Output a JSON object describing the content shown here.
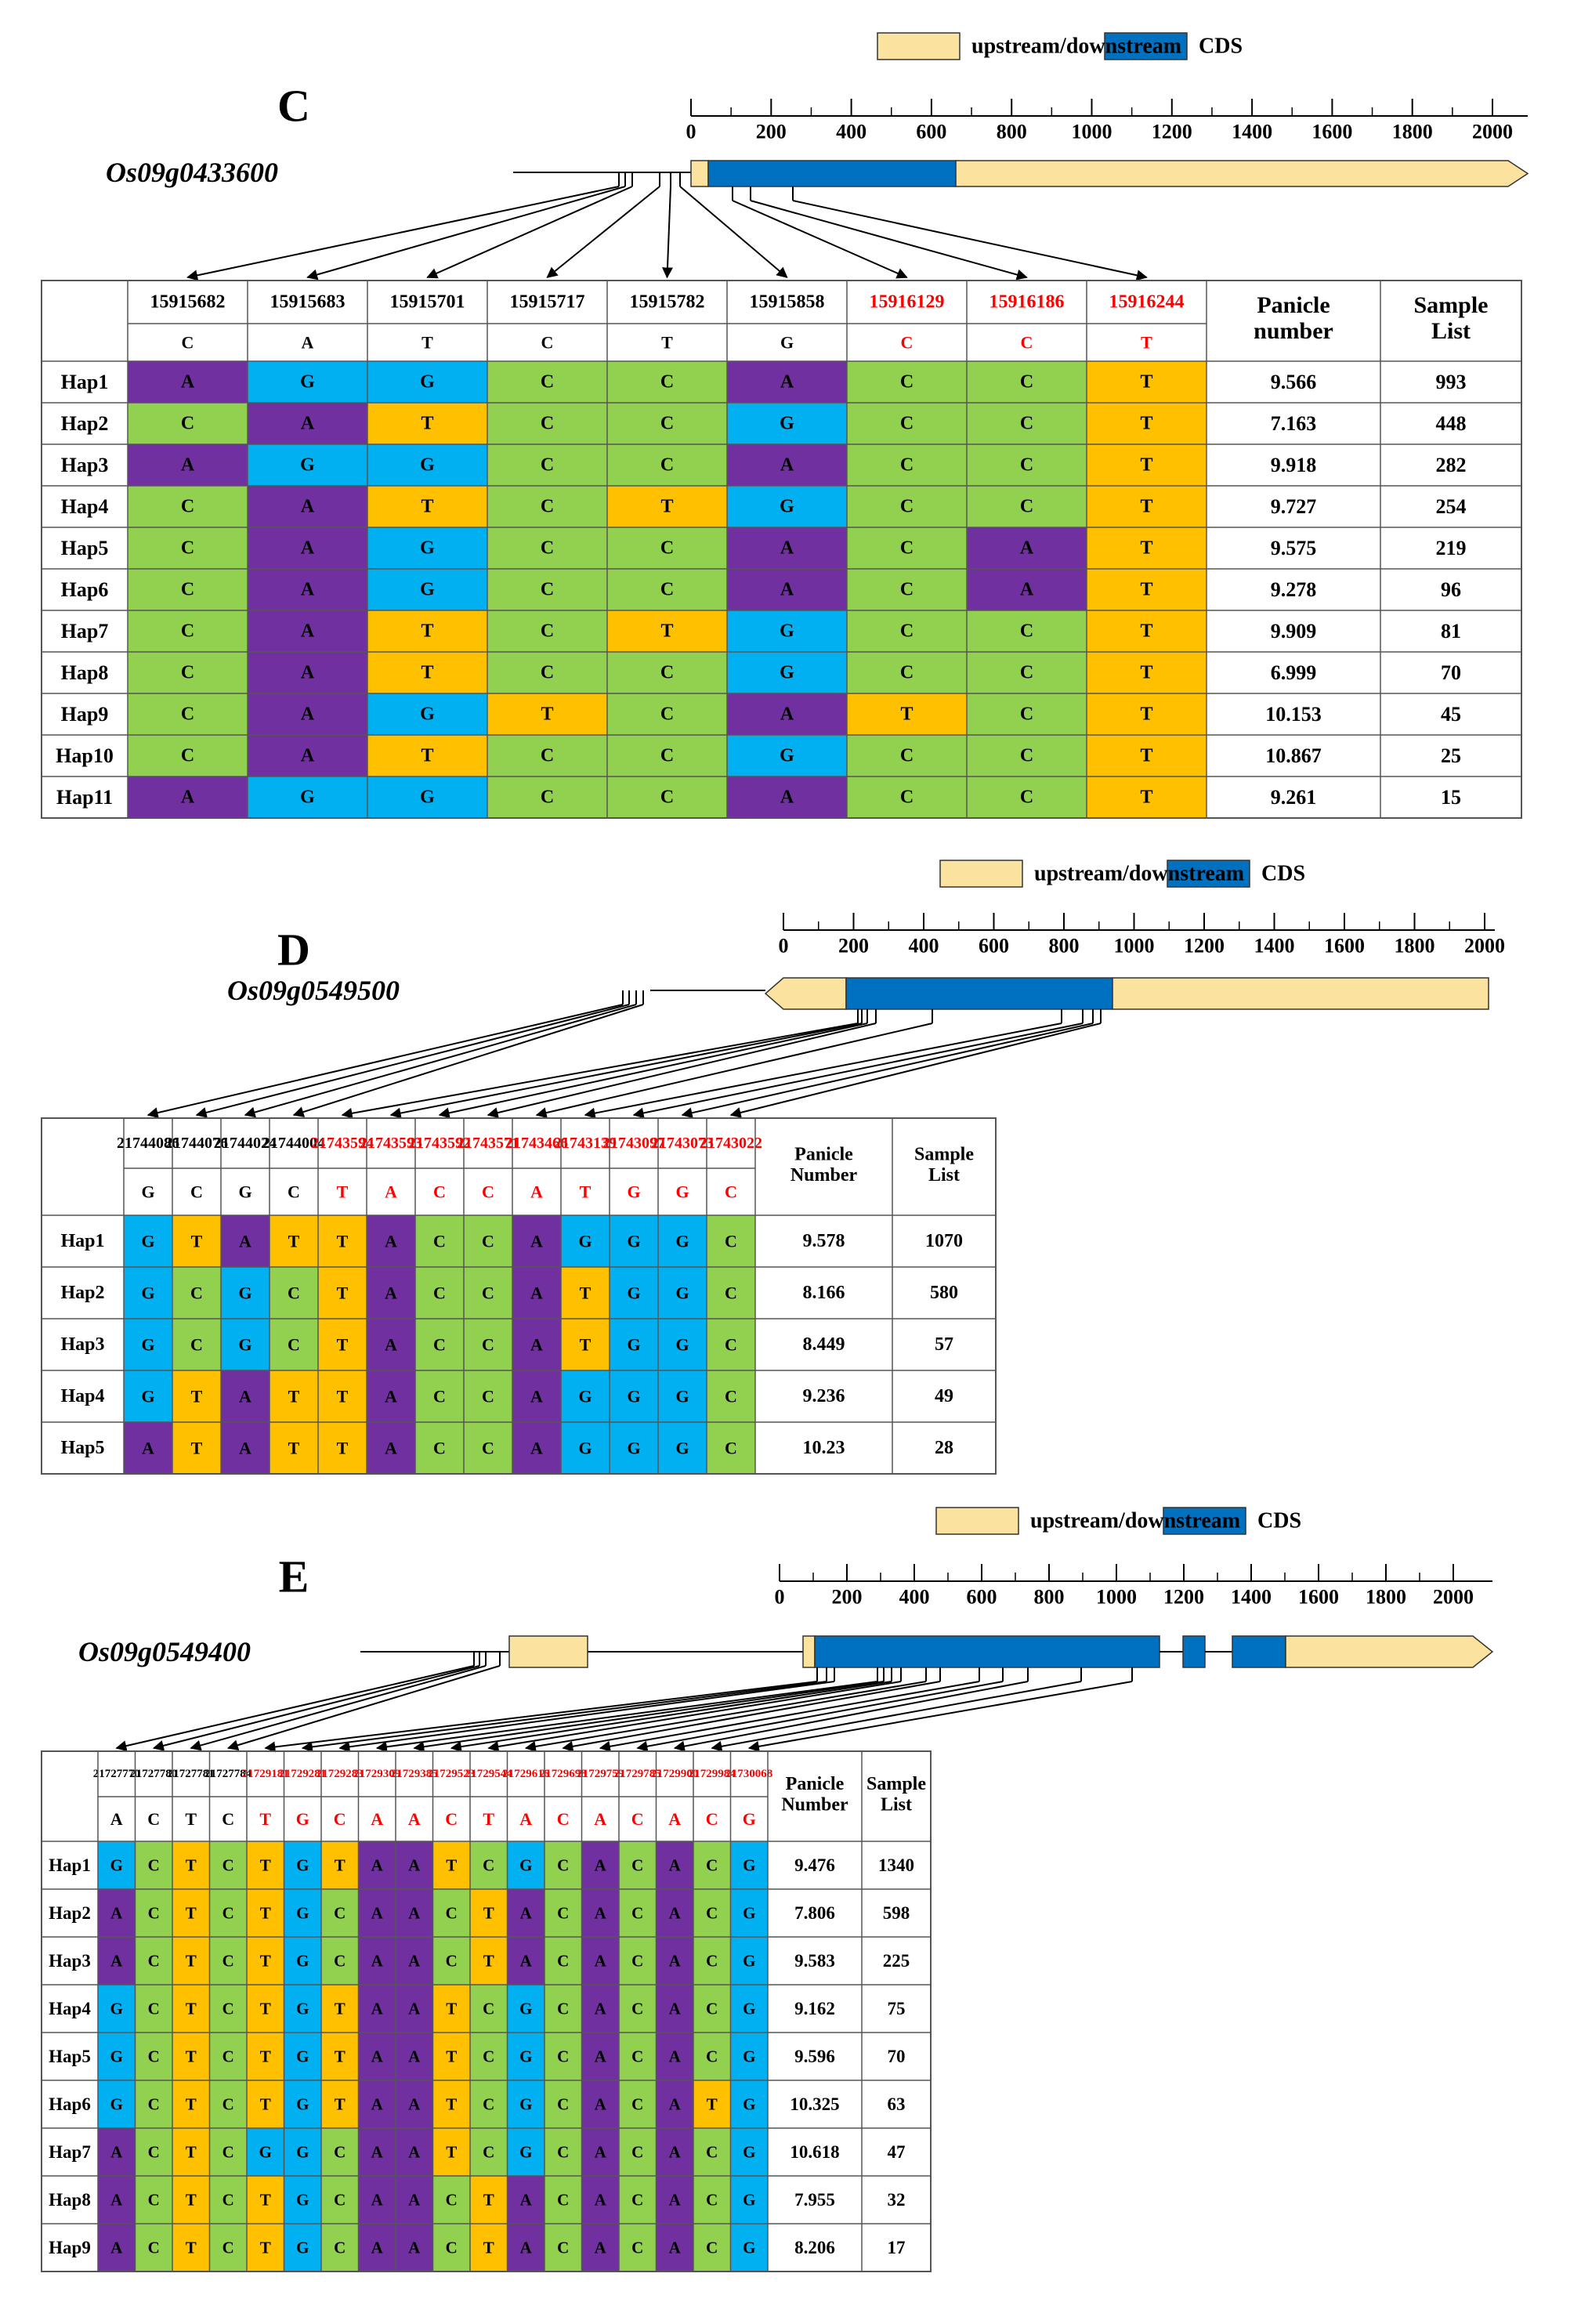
{
  "colors": {
    "A": "#7030a0",
    "C": "#92d050",
    "G": "#00b0f0",
    "T": "#ffc000",
    "utr": "#fbe39f",
    "cds": "#0070c0",
    "red": "#ff0000",
    "grid": "#555555"
  },
  "legend": {
    "utr_label": "upstream/downstream",
    "cds_label": "CDS"
  },
  "scale_ticks": [
    "0",
    "200",
    "400",
    "600",
    "800",
    "1000",
    "1200",
    "1400",
    "1600",
    "1800",
    "2000"
  ],
  "panels": [
    {
      "letter": "C",
      "gene": "Os09g0433600",
      "col_header_1": "Panicle number",
      "col_header_2": "Sample List",
      "positions": [
        "15915682",
        "15915683",
        "15915701",
        "15915717",
        "15915782",
        "15915858",
        "15916129",
        "15916186",
        "15916244"
      ],
      "ref": [
        "C",
        "A",
        "T",
        "C",
        "T",
        "G",
        "C",
        "C",
        "T"
      ],
      "red": [
        false,
        false,
        false,
        false,
        false,
        false,
        true,
        true,
        true
      ],
      "haps": [
        {
          "name": "Hap1",
          "alleles": [
            "A",
            "G",
            "G",
            "C",
            "C",
            "A",
            "C",
            "C",
            "T"
          ],
          "panicle": "9.566",
          "samples": "993"
        },
        {
          "name": "Hap2",
          "alleles": [
            "C",
            "A",
            "T",
            "C",
            "C",
            "G",
            "C",
            "C",
            "T"
          ],
          "panicle": "7.163",
          "samples": "448"
        },
        {
          "name": "Hap3",
          "alleles": [
            "A",
            "G",
            "G",
            "C",
            "C",
            "A",
            "C",
            "C",
            "T"
          ],
          "panicle": "9.918",
          "samples": "282"
        },
        {
          "name": "Hap4",
          "alleles": [
            "C",
            "A",
            "T",
            "C",
            "T",
            "G",
            "C",
            "C",
            "T"
          ],
          "panicle": "9.727",
          "samples": "254"
        },
        {
          "name": "Hap5",
          "alleles": [
            "C",
            "A",
            "G",
            "C",
            "C",
            "A",
            "C",
            "A",
            "T"
          ],
          "panicle": "9.575",
          "samples": "219"
        },
        {
          "name": "Hap6",
          "alleles": [
            "C",
            "A",
            "G",
            "C",
            "C",
            "A",
            "C",
            "A",
            "T"
          ],
          "panicle": "9.278",
          "samples": "96"
        },
        {
          "name": "Hap7",
          "alleles": [
            "C",
            "A",
            "T",
            "C",
            "T",
            "G",
            "C",
            "C",
            "T"
          ],
          "panicle": "9.909",
          "samples": "81"
        },
        {
          "name": "Hap8",
          "alleles": [
            "C",
            "A",
            "T",
            "C",
            "C",
            "G",
            "C",
            "C",
            "T"
          ],
          "panicle": "6.999",
          "samples": "70"
        },
        {
          "name": "Hap9",
          "alleles": [
            "C",
            "A",
            "G",
            "T",
            "C",
            "A",
            "T",
            "C",
            "T"
          ],
          "panicle": "10.153",
          "samples": "45"
        },
        {
          "name": "Hap10",
          "alleles": [
            "C",
            "A",
            "T",
            "C",
            "C",
            "G",
            "C",
            "C",
            "T"
          ],
          "panicle": "10.867",
          "samples": "25"
        },
        {
          "name": "Hap11",
          "alleles": [
            "A",
            "G",
            "G",
            "C",
            "C",
            "A",
            "C",
            "C",
            "T"
          ],
          "panicle": "9.261",
          "samples": "15"
        }
      ]
    },
    {
      "letter": "D",
      "gene": "Os09g0549500",
      "col_header_1": "Panicle Number",
      "col_header_2": "Sample List",
      "positions": [
        "21744086",
        "21744076",
        "21744024",
        "21744004",
        "21743594",
        "21743593",
        "21743592",
        "21743571",
        "21743466",
        "21743139",
        "21743097",
        "21743073",
        "21743022"
      ],
      "ref": [
        "G",
        "C",
        "G",
        "C",
        "T",
        "A",
        "C",
        "C",
        "A",
        "T",
        "G",
        "G",
        "C"
      ],
      "red": [
        false,
        false,
        false,
        false,
        true,
        true,
        true,
        true,
        true,
        true,
        true,
        true,
        true
      ],
      "haps": [
        {
          "name": "Hap1",
          "alleles": [
            "G",
            "T",
            "A",
            "T",
            "T",
            "A",
            "C",
            "C",
            "A",
            "G",
            "G",
            "G",
            "C"
          ],
          "panicle": "9.578",
          "samples": "1070"
        },
        {
          "name": "Hap2",
          "alleles": [
            "G",
            "C",
            "G",
            "C",
            "T",
            "A",
            "C",
            "C",
            "A",
            "T",
            "G",
            "G",
            "C"
          ],
          "panicle": "8.166",
          "samples": "580"
        },
        {
          "name": "Hap3",
          "alleles": [
            "G",
            "C",
            "G",
            "C",
            "T",
            "A",
            "C",
            "C",
            "A",
            "T",
            "G",
            "G",
            "C"
          ],
          "panicle": "8.449",
          "samples": "57"
        },
        {
          "name": "Hap4",
          "alleles": [
            "G",
            "T",
            "A",
            "T",
            "T",
            "A",
            "C",
            "C",
            "A",
            "G",
            "G",
            "G",
            "C"
          ],
          "panicle": "9.236",
          "samples": "49"
        },
        {
          "name": "Hap5",
          "alleles": [
            "A",
            "T",
            "A",
            "T",
            "T",
            "A",
            "C",
            "C",
            "A",
            "G",
            "G",
            "G",
            "C"
          ],
          "panicle": "10.23",
          "samples": "28"
        }
      ]
    },
    {
      "letter": "E",
      "gene": "Os09g0549400",
      "col_header_1": "Panicle Number",
      "col_header_2": "Sample List",
      "positions": [
        "21727770",
        "21727780",
        "21727781",
        "21727784",
        "21729181",
        "21729281",
        "21729283",
        "21729309",
        "21729385",
        "21729523",
        "21729544",
        "21729616",
        "21729698",
        "21729759",
        "21729785",
        "21729900",
        "21729984",
        "21730068"
      ],
      "ref": [
        "A",
        "C",
        "T",
        "C",
        "T",
        "G",
        "C",
        "A",
        "A",
        "C",
        "T",
        "A",
        "C",
        "A",
        "C",
        "A",
        "C",
        "G"
      ],
      "red": [
        false,
        false,
        false,
        false,
        true,
        true,
        true,
        true,
        true,
        true,
        true,
        true,
        true,
        true,
        true,
        true,
        true,
        true
      ],
      "haps": [
        {
          "name": "Hap1",
          "alleles": [
            "G",
            "C",
            "T",
            "C",
            "T",
            "G",
            "T",
            "A",
            "A",
            "T",
            "C",
            "G",
            "C",
            "A",
            "C",
            "A",
            "C",
            "G"
          ],
          "panicle": "9.476",
          "samples": "1340"
        },
        {
          "name": "Hap2",
          "alleles": [
            "A",
            "C",
            "T",
            "C",
            "T",
            "G",
            "C",
            "A",
            "A",
            "C",
            "T",
            "A",
            "C",
            "A",
            "C",
            "A",
            "C",
            "G"
          ],
          "panicle": "7.806",
          "samples": "598"
        },
        {
          "name": "Hap3",
          "alleles": [
            "A",
            "C",
            "T",
            "C",
            "T",
            "G",
            "C",
            "A",
            "A",
            "C",
            "T",
            "A",
            "C",
            "A",
            "C",
            "A",
            "C",
            "G"
          ],
          "panicle": "9.583",
          "samples": "225"
        },
        {
          "name": "Hap4",
          "alleles": [
            "G",
            "C",
            "T",
            "C",
            "T",
            "G",
            "T",
            "A",
            "A",
            "T",
            "C",
            "G",
            "C",
            "A",
            "C",
            "A",
            "C",
            "G"
          ],
          "panicle": "9.162",
          "samples": "75"
        },
        {
          "name": "Hap5",
          "alleles": [
            "G",
            "C",
            "T",
            "C",
            "T",
            "G",
            "T",
            "A",
            "A",
            "T",
            "C",
            "G",
            "C",
            "A",
            "C",
            "A",
            "C",
            "G"
          ],
          "panicle": "9.596",
          "samples": "70"
        },
        {
          "name": "Hap6",
          "alleles": [
            "G",
            "C",
            "T",
            "C",
            "T",
            "G",
            "T",
            "A",
            "A",
            "T",
            "C",
            "G",
            "C",
            "A",
            "C",
            "A",
            "T",
            "G"
          ],
          "panicle": "10.325",
          "samples": "63"
        },
        {
          "name": "Hap7",
          "alleles": [
            "A",
            "C",
            "T",
            "C",
            "G",
            "G",
            "C",
            "A",
            "A",
            "T",
            "C",
            "G",
            "C",
            "A",
            "C",
            "A",
            "C",
            "G"
          ],
          "panicle": "10.618",
          "samples": "47"
        },
        {
          "name": "Hap8",
          "alleles": [
            "A",
            "C",
            "T",
            "C",
            "T",
            "G",
            "C",
            "A",
            "A",
            "C",
            "T",
            "A",
            "C",
            "A",
            "C",
            "A",
            "C",
            "G"
          ],
          "panicle": "7.955",
          "samples": "32"
        },
        {
          "name": "Hap9",
          "alleles": [
            "A",
            "C",
            "T",
            "C",
            "T",
            "G",
            "C",
            "A",
            "A",
            "C",
            "T",
            "A",
            "C",
            "A",
            "C",
            "A",
            "C",
            "G"
          ],
          "panicle": "8.206",
          "samples": "17"
        }
      ]
    }
  ]
}
